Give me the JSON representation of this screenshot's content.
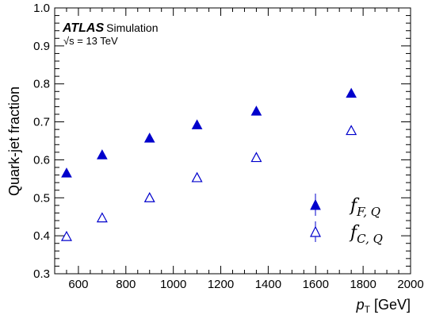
{
  "chart_data": {
    "type": "scatter",
    "title": "",
    "ylabel": "Quark-jet fraction",
    "xlabel_main": "p",
    "xlabel_sub": "T",
    "xlabel_unit": " [GeV]",
    "xlim": [
      500,
      2000
    ],
    "ylim": [
      0.3,
      1.0
    ],
    "xticks": [
      600,
      800,
      1000,
      1200,
      1400,
      1600,
      1800,
      2000
    ],
    "yticks": [
      0.3,
      0.4,
      0.5,
      0.6,
      0.7,
      0.8,
      0.9,
      1.0
    ],
    "yticks_labels": [
      "0.3",
      "0.4",
      "0.5",
      "0.6",
      "0.7",
      "0.8",
      "0.9",
      "1.0"
    ],
    "experiment": "ATLAS",
    "experiment_tag": "Simulation",
    "energy_label": "√s = 13 TeV",
    "series": [
      {
        "name_main": "f",
        "name_sub": "F, Q",
        "marker": "filled-triangle",
        "color": "#0000cc",
        "x": [
          550,
          700,
          900,
          1100,
          1350,
          1750
        ],
        "y": [
          0.565,
          0.613,
          0.657,
          0.692,
          0.728,
          0.775
        ]
      },
      {
        "name_main": "f",
        "name_sub": "C, Q",
        "marker": "open-triangle",
        "color": "#0000cc",
        "x": [
          550,
          700,
          900,
          1100,
          1350,
          1750
        ],
        "y": [
          0.398,
          0.447,
          0.5,
          0.553,
          0.606,
          0.677
        ]
      }
    ],
    "legend_position": "bottom-right",
    "grid": false
  }
}
